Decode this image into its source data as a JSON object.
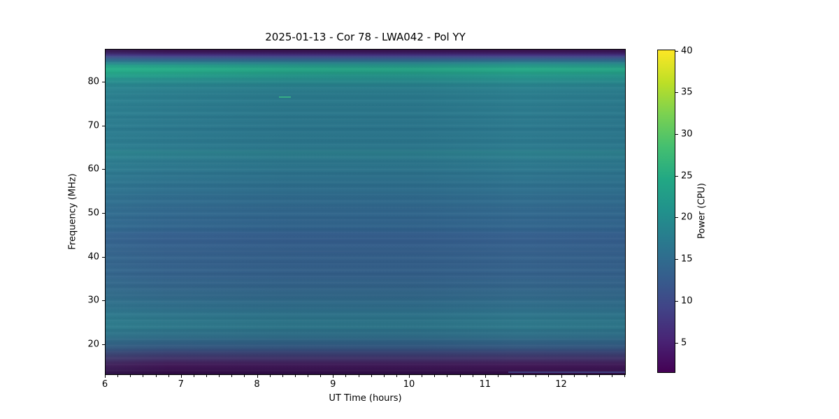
{
  "title": "2025-01-13 - Cor 78 - LWA042 - Pol YY",
  "background_color": "#ffffff",
  "chart_data": {
    "type": "heatmap",
    "title": "2025-01-13 - Cor 78 - LWA042 - Pol YY",
    "xlabel": "UT Time (hours)",
    "ylabel": "Frequency (MHz)",
    "colorbar_label": "Power (CPU)",
    "colormap": "viridis",
    "grid": "off",
    "legend": "none",
    "x_range": [
      6.0,
      12.85
    ],
    "y_range": [
      13.0,
      87.5
    ],
    "color_range": [
      1.4,
      40.1
    ],
    "x_ticks": [
      6,
      7,
      8,
      9,
      10,
      11,
      12
    ],
    "x_minor_step": 0.1666667,
    "y_ticks": [
      20,
      30,
      40,
      50,
      60,
      70,
      80
    ],
    "colorbar_ticks": [
      5,
      10,
      15,
      20,
      25,
      30,
      35,
      40
    ],
    "frequency_power_profile": [
      {
        "freq_mhz": 87.4,
        "power_cpu": 2.0
      },
      {
        "freq_mhz": 86.5,
        "power_cpu": 4.5
      },
      {
        "freq_mhz": 85.5,
        "power_cpu": 7.5
      },
      {
        "freq_mhz": 84.5,
        "power_cpu": 11.0
      },
      {
        "freq_mhz": 83.5,
        "power_cpu": 14.5
      },
      {
        "freq_mhz": 82.0,
        "power_cpu": 19.0
      },
      {
        "freq_mhz": 80.5,
        "power_cpu": 23.5
      },
      {
        "freq_mhz": 79.0,
        "power_cpu": 25.5
      },
      {
        "freq_mhz": 77.5,
        "power_cpu": 23.0
      },
      {
        "freq_mhz": 76.0,
        "power_cpu": 21.5
      },
      {
        "freq_mhz": 74.0,
        "power_cpu": 20.5
      },
      {
        "freq_mhz": 71.0,
        "power_cpu": 19.8
      },
      {
        "freq_mhz": 65.0,
        "power_cpu": 19.5
      },
      {
        "freq_mhz": 63.0,
        "power_cpu": 20.3
      },
      {
        "freq_mhz": 60.0,
        "power_cpu": 19.3
      },
      {
        "freq_mhz": 55.0,
        "power_cpu": 18.3
      },
      {
        "freq_mhz": 50.0,
        "power_cpu": 17.2
      },
      {
        "freq_mhz": 46.0,
        "power_cpu": 16.4
      },
      {
        "freq_mhz": 45.0,
        "power_cpu": 14.8
      },
      {
        "freq_mhz": 40.0,
        "power_cpu": 14.6
      },
      {
        "freq_mhz": 36.0,
        "power_cpu": 14.9
      },
      {
        "freq_mhz": 32.0,
        "power_cpu": 15.8
      },
      {
        "freq_mhz": 28.0,
        "power_cpu": 17.0
      },
      {
        "freq_mhz": 25.0,
        "power_cpu": 18.6
      },
      {
        "freq_mhz": 22.5,
        "power_cpu": 17.8
      },
      {
        "freq_mhz": 21.0,
        "power_cpu": 16.3
      },
      {
        "freq_mhz": 19.5,
        "power_cpu": 13.8
      },
      {
        "freq_mhz": 18.0,
        "power_cpu": 10.5
      },
      {
        "freq_mhz": 16.5,
        "power_cpu": 6.5
      },
      {
        "freq_mhz": 15.0,
        "power_cpu": 3.5
      },
      {
        "freq_mhz": 13.2,
        "power_cpu": 1.8
      }
    ],
    "heatmap_vertical_gradient": [
      {
        "pct": 0.0,
        "color": "#2f0c44"
      },
      {
        "pct": 0.4,
        "color": "#37114e"
      },
      {
        "pct": 1.1,
        "color": "#3f2066"
      },
      {
        "pct": 1.7,
        "color": "#453081"
      },
      {
        "pct": 2.4,
        "color": "#3f4d88"
      },
      {
        "pct": 3.0,
        "color": "#35628d"
      },
      {
        "pct": 3.9,
        "color": "#2c7f8e"
      },
      {
        "pct": 4.9,
        "color": "#27998a"
      },
      {
        "pct": 6.0,
        "color": "#25a885"
      },
      {
        "pct": 7.1,
        "color": "#26a487"
      },
      {
        "pct": 7.9,
        "color": "#249689"
      },
      {
        "pct": 9.2,
        "color": "#27908c"
      },
      {
        "pct": 10.7,
        "color": "#29868e"
      },
      {
        "pct": 12.2,
        "color": "#2b808e"
      },
      {
        "pct": 15.0,
        "color": "#2b7d8e"
      },
      {
        "pct": 19.3,
        "color": "#2c7b8e"
      },
      {
        "pct": 24.6,
        "color": "#2c798e"
      },
      {
        "pct": 30.4,
        "color": "#2c7a8e"
      },
      {
        "pct": 31.5,
        "color": "#2d828d"
      },
      {
        "pct": 33.8,
        "color": "#2d7b8e"
      },
      {
        "pct": 38.5,
        "color": "#2e758e"
      },
      {
        "pct": 42.8,
        "color": "#2f708e"
      },
      {
        "pct": 49.3,
        "color": "#32698e"
      },
      {
        "pct": 55.7,
        "color": "#33658e"
      },
      {
        "pct": 57.0,
        "color": "#365f8e"
      },
      {
        "pct": 62.1,
        "color": "#36618c"
      },
      {
        "pct": 69.6,
        "color": "#35628b"
      },
      {
        "pct": 74.9,
        "color": "#336789"
      },
      {
        "pct": 79.7,
        "color": "#2f6f8a"
      },
      {
        "pct": 83.1,
        "color": "#2e788b"
      },
      {
        "pct": 85.7,
        "color": "#2e778a"
      },
      {
        "pct": 88.2,
        "color": "#2f6d87"
      },
      {
        "pct": 90.4,
        "color": "#316083"
      },
      {
        "pct": 92.1,
        "color": "#35517c"
      },
      {
        "pct": 93.6,
        "color": "#3b4172"
      },
      {
        "pct": 95.1,
        "color": "#413067"
      },
      {
        "pct": 96.6,
        "color": "#44205c"
      },
      {
        "pct": 98.1,
        "color": "#3d1150"
      },
      {
        "pct": 99.1,
        "color": "#330b46"
      },
      {
        "pct": 100.0,
        "color": "#2d0941"
      }
    ],
    "viridis_stops": [
      {
        "pct": 0,
        "color": "#440154"
      },
      {
        "pct": 10,
        "color": "#482475"
      },
      {
        "pct": 20,
        "color": "#414487"
      },
      {
        "pct": 30,
        "color": "#355f8d"
      },
      {
        "pct": 40,
        "color": "#2a788e"
      },
      {
        "pct": 50,
        "color": "#21918c"
      },
      {
        "pct": 60,
        "color": "#22a884"
      },
      {
        "pct": 70,
        "color": "#44bf70"
      },
      {
        "pct": 80,
        "color": "#7ad151"
      },
      {
        "pct": 90,
        "color": "#bddf26"
      },
      {
        "pct": 100,
        "color": "#fde725"
      }
    ],
    "features": [
      {
        "label": "bright-green-dash",
        "t_start": 8.28,
        "t_end": 8.44,
        "freq_mhz": 76.8,
        "thickness_px": 2,
        "color": "#36ad85"
      },
      {
        "label": "faint-blue-streak",
        "t_start": 11.3,
        "t_end": 12.85,
        "freq_mhz": 13.9,
        "thickness_px": 2,
        "color": "rgba(80,110,180,0.55)"
      }
    ]
  }
}
